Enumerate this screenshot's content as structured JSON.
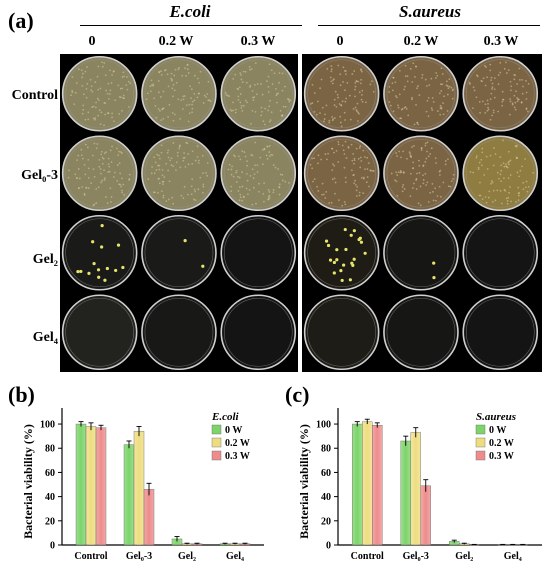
{
  "panel_a": {
    "letter": "(a)",
    "groups": [
      {
        "title": "E.coli",
        "columns": [
          "0",
          "0.2 W",
          "0.3 W"
        ]
      },
      {
        "title": "S.aureus",
        "columns": [
          "0",
          "0.2 W",
          "0.3 W"
        ]
      }
    ],
    "rows": [
      {
        "label": "Control",
        "plates": [
          {
            "tint": "#8a8460",
            "density": "lawn",
            "colonies": 0
          },
          {
            "tint": "#8a8460",
            "density": "lawn",
            "colonies": 0
          },
          {
            "tint": "#8a8460",
            "density": "lawn",
            "colonies": 0
          },
          {
            "tint": "#7a6444",
            "density": "lawn",
            "colonies": 0
          },
          {
            "tint": "#7a6444",
            "density": "lawn",
            "colonies": 0
          },
          {
            "tint": "#7a6444",
            "density": "lawn",
            "colonies": 0
          }
        ]
      },
      {
        "label": "Gel₀-3",
        "plates": [
          {
            "tint": "#8a8460",
            "density": "lawn",
            "colonies": 0
          },
          {
            "tint": "#8a8460",
            "density": "lawn",
            "colonies": 0
          },
          {
            "tint": "#8a8460",
            "density": "lawn",
            "colonies": 0
          },
          {
            "tint": "#7a6444",
            "density": "lawn",
            "colonies": 0
          },
          {
            "tint": "#7a6444",
            "density": "lawn",
            "colonies": 0
          },
          {
            "tint": "#8e7c40",
            "density": "lawn",
            "colonies": 0
          }
        ]
      },
      {
        "label": "Gel₂",
        "plates": [
          {
            "tint": "#1a1a18",
            "density": "sparse",
            "colonies": 14
          },
          {
            "tint": "#1a1a18",
            "density": "sparse",
            "colonies": 2
          },
          {
            "tint": "#141414",
            "density": "sparse",
            "colonies": 0
          },
          {
            "tint": "#1e1c14",
            "density": "sparse",
            "colonies": 22
          },
          {
            "tint": "#161614",
            "density": "sparse",
            "colonies": 2
          },
          {
            "tint": "#141414",
            "density": "sparse",
            "colonies": 0
          }
        ]
      },
      {
        "label": "Gel₄",
        "plates": [
          {
            "tint": "#22221e",
            "density": "sparse",
            "colonies": 0
          },
          {
            "tint": "#181816",
            "density": "sparse",
            "colonies": 0
          },
          {
            "tint": "#141414",
            "density": "sparse",
            "colonies": 0
          },
          {
            "tint": "#1e1c16",
            "density": "sparse",
            "colonies": 0
          },
          {
            "tint": "#161614",
            "density": "sparse",
            "colonies": 0
          },
          {
            "tint": "#141414",
            "density": "sparse",
            "colonies": 0
          }
        ]
      }
    ]
  },
  "chart_data": [
    {
      "type": "bar",
      "panel": "(b)",
      "title": "",
      "legend_title": "E.coli",
      "categories": [
        "Control",
        "Gel₀-3",
        "Gel₂",
        "Gel₄"
      ],
      "xlabel": "",
      "ylabel": "Bacterial viability (%)",
      "ylim": [
        0,
        100
      ],
      "yticks": [
        0,
        20,
        40,
        60,
        80,
        100
      ],
      "legend_position": "top-right",
      "series": [
        {
          "name": "0 W",
          "color": "#7cd46a",
          "values": [
            100,
            83,
            5,
            1
          ],
          "errors": [
            2,
            3,
            2,
            0.5
          ]
        },
        {
          "name": "0.2 W",
          "color": "#eedd80",
          "values": [
            98,
            94,
            1,
            1
          ],
          "errors": [
            3,
            4,
            0.5,
            0.5
          ]
        },
        {
          "name": "0.3 W",
          "color": "#ee8c8c",
          "values": [
            97,
            46,
            1,
            1
          ],
          "errors": [
            2,
            5,
            0.5,
            0.5
          ]
        }
      ]
    },
    {
      "type": "bar",
      "panel": "(c)",
      "title": "",
      "legend_title": "S.aureus",
      "categories": [
        "Control",
        "Gel₀-3",
        "Gel₂",
        "Gel₄"
      ],
      "xlabel": "",
      "ylabel": "Bacterial viability (%)",
      "ylim": [
        0,
        100
      ],
      "yticks": [
        0,
        20,
        40,
        60,
        80,
        100
      ],
      "legend_position": "top-right",
      "series": [
        {
          "name": "0 W",
          "color": "#7cd46a",
          "values": [
            100,
            86,
            3,
            0
          ],
          "errors": [
            2,
            4,
            1,
            0.5
          ]
        },
        {
          "name": "0.2 W",
          "color": "#eedd80",
          "values": [
            102,
            93,
            1,
            0
          ],
          "errors": [
            2,
            4,
            0.5,
            0.5
          ]
        },
        {
          "name": "0.3 W",
          "color": "#ee8c8c",
          "values": [
            99,
            49,
            0,
            0
          ],
          "errors": [
            2,
            5,
            0.5,
            0.5
          ]
        }
      ]
    }
  ]
}
